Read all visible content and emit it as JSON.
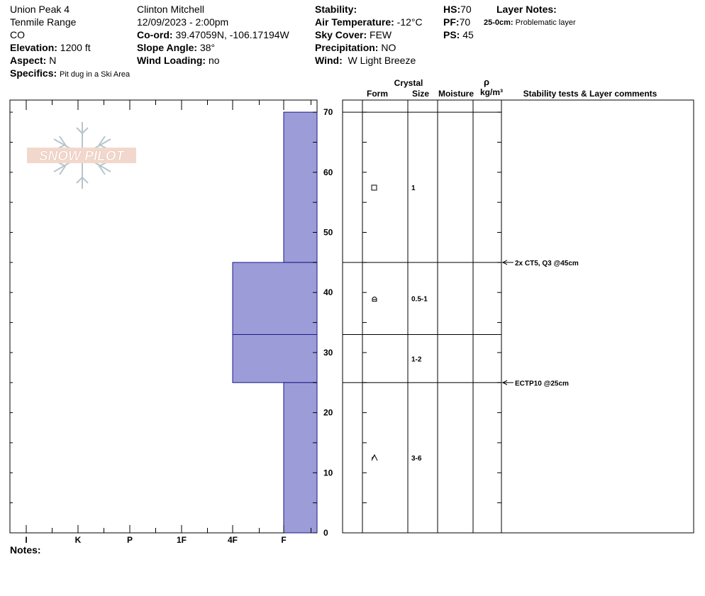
{
  "site": {
    "name": "Union Peak 4",
    "range": "Tenmile Range",
    "state": "CO",
    "elevation_label": "Elevation:",
    "elevation": "1200 ft",
    "aspect_label": "Aspect:",
    "aspect": "N",
    "specifics_label": "Specifics:",
    "specifics": "Pit dug in a Ski Area"
  },
  "observer": {
    "name": "Clinton Mitchell",
    "datetime": "12/09/2023 - 2:00pm",
    "coord_label": "Co-ord:",
    "coord": "39.47059N, -106.17194W",
    "slope_label": "Slope Angle:",
    "slope": "38°",
    "wind_loading_label": "Wind Loading:",
    "wind_loading": "no"
  },
  "conditions": {
    "stability_label": "Stability:",
    "stability": "",
    "air_temp_label": "Air Temperature:",
    "air_temp": "-12°C",
    "sky_label": "Sky Cover:",
    "sky": "FEW",
    "precip_label": "Precipitation:",
    "precip": "NO",
    "wind_label": "Wind:",
    "wind": "W Light Breeze"
  },
  "depths": {
    "hs_label": "HS:",
    "hs": "70",
    "pf_label": "PF:",
    "pf": "70",
    "ps_label": "PS:",
    "ps": "45"
  },
  "layer_notes": {
    "title": "Layer Notes:",
    "items": [
      {
        "range": "25-0cm:",
        "text": "Problematic layer"
      }
    ]
  },
  "notes_label": "Notes:",
  "columns": {
    "crystal": "Crystal",
    "form": "Form",
    "size": "Size",
    "moisture": "Moisture",
    "rho": "ρ",
    "density_unit": "kg/m³",
    "comments": "Stability tests & Layer comments"
  },
  "logo_text": "SNOW PILOT",
  "colors": {
    "hardness_fill": "#9c9cd8",
    "hardness_stroke": "#1a1a8a"
  },
  "chart_data": {
    "type": "bar",
    "y_label": "",
    "y_range": [
      0,
      70
    ],
    "y_ticks": [
      0,
      10,
      20,
      30,
      40,
      50,
      60,
      70
    ],
    "hardness_scale": [
      "I",
      "K",
      "P",
      "1F",
      "4F",
      "F"
    ],
    "layers": [
      {
        "top": 70,
        "bottom": 45,
        "hardness": "F",
        "form": "facet-square-icon",
        "size": "1"
      },
      {
        "top": 45,
        "bottom": 33,
        "hardness": "4F",
        "form": "rounding-facet-icon",
        "size": "0.5-1"
      },
      {
        "top": 33,
        "bottom": 25,
        "hardness": "4F",
        "form": "",
        "size": "1-2"
      },
      {
        "top": 25,
        "bottom": 0,
        "hardness": "F",
        "form": "depth-hoar-icon",
        "size": "3-6"
      }
    ],
    "stability_tests": [
      {
        "depth": 45,
        "text": "2x CT5, Q3 @45cm"
      },
      {
        "depth": 25,
        "text": "ECTP10 @25cm"
      }
    ]
  }
}
